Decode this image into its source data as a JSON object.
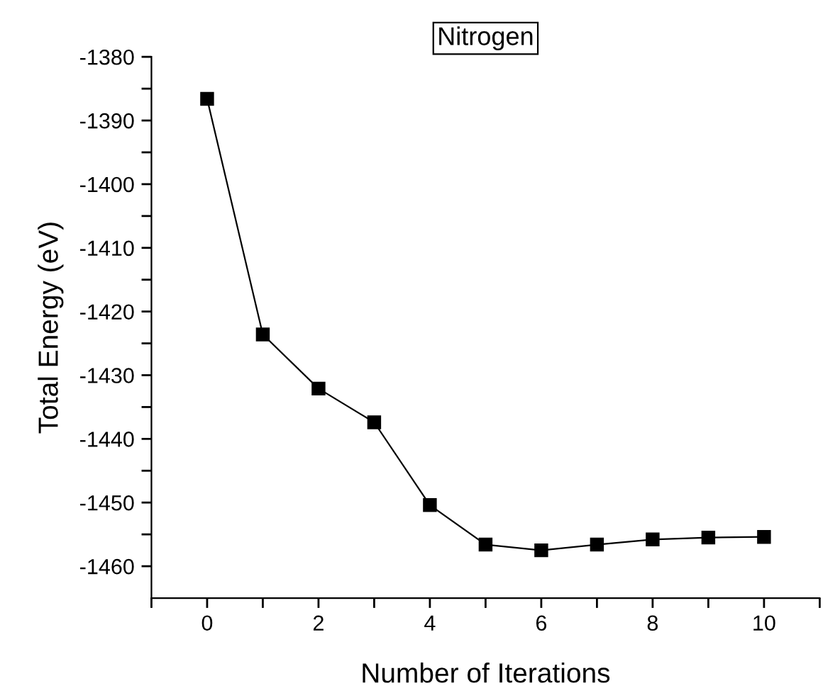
{
  "chart_data": {
    "type": "line",
    "title": "Nitrogen",
    "xlabel": "Number of Iterations",
    "ylabel": "Total Energy (eV)",
    "x": [
      0,
      1,
      2,
      3,
      4,
      5,
      6,
      7,
      8,
      9,
      10
    ],
    "series": [
      {
        "color": "#000000",
        "values": [
          -1386.6,
          -1423.6,
          -1432.1,
          -1437.4,
          -1450.4,
          -1456.6,
          -1457.5,
          -1456.6,
          -1455.8,
          -1455.5,
          -1455.4
        ]
      }
    ],
    "marker": "square",
    "line_style": "solid",
    "grid": false,
    "legend": false,
    "xlim": [
      -1,
      11
    ],
    "ylim": [
      -1465,
      -1380
    ],
    "xticks": [
      {
        "value": -1,
        "label": null
      },
      0,
      {
        "value": 1,
        "label": null
      },
      2,
      {
        "value": 3,
        "label": null
      },
      4,
      {
        "value": 5,
        "label": null
      },
      6,
      {
        "value": 7,
        "label": null
      },
      8,
      {
        "value": 9,
        "label": null
      },
      10,
      {
        "value": 11,
        "label": null
      }
    ],
    "yticks": [
      -1460,
      {
        "value": -1455,
        "label": null
      },
      -1450,
      {
        "value": -1445,
        "label": null
      },
      -1440,
      {
        "value": -1435,
        "label": null
      },
      -1430,
      {
        "value": -1425,
        "label": null
      },
      -1420,
      {
        "value": -1415,
        "label": null
      },
      -1410,
      {
        "value": -1405,
        "label": null
      },
      -1400,
      {
        "value": -1395,
        "label": null
      },
      -1390,
      {
        "value": -1385,
        "label": null
      },
      -1380
    ]
  }
}
